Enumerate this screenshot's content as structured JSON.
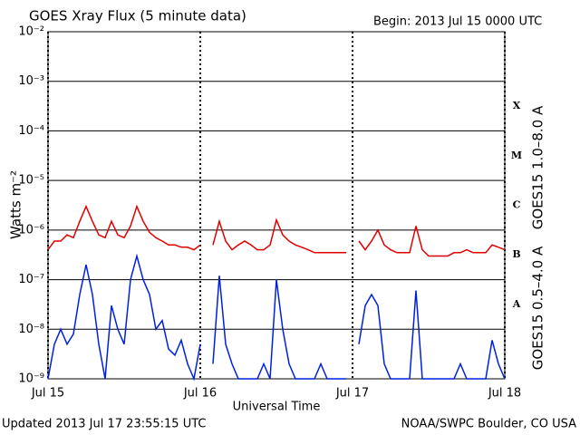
{
  "chart_data": {
    "type": "line",
    "title": "GOES Xray Flux (5 minute data)",
    "subtitle": "Begin:  2013 Jul 15 0000 UTC",
    "y_label": "Watts m⁻²",
    "x_label": "Universal Time",
    "footer_left": "Updated 2013 Jul 17 23:55:15 UTC",
    "footer_right": "NOAA/SWPC Boulder, CO USA",
    "class_labels": [
      "A",
      "B",
      "C",
      "M",
      "X"
    ],
    "log_y": true,
    "grid": true,
    "xlim": [
      0,
      72
    ],
    "xticks": [
      {
        "value": 0,
        "label": "Jul 15"
      },
      {
        "value": 24,
        "label": "Jul 16"
      },
      {
        "value": 48,
        "label": "Jul 17"
      },
      {
        "value": 72,
        "label": "Jul 18"
      }
    ],
    "ylim": [
      1e-09,
      0.01
    ],
    "yticks": [
      {
        "value": 1e-09,
        "label": "10⁻⁹"
      },
      {
        "value": 1e-08,
        "label": "10⁻⁸"
      },
      {
        "value": 1e-07,
        "label": "10⁻⁷"
      },
      {
        "value": 1e-06,
        "label": "10⁻⁶"
      },
      {
        "value": 1e-05,
        "label": "10⁻⁵"
      },
      {
        "value": 0.0001,
        "label": "10⁻⁴"
      },
      {
        "value": 0.001,
        "label": "10⁻³"
      },
      {
        "value": 0.01,
        "label": "10⁻²"
      }
    ],
    "x": [
      0,
      1,
      2,
      3,
      4,
      5,
      6,
      7,
      8,
      9,
      10,
      11,
      12,
      13,
      14,
      15,
      16,
      17,
      18,
      19,
      20,
      21,
      22,
      23,
      24,
      25,
      26,
      27,
      28,
      29,
      30,
      31,
      32,
      33,
      34,
      35,
      36,
      37,
      38,
      39,
      40,
      41,
      42,
      43,
      44,
      45,
      46,
      47,
      48,
      49,
      50,
      51,
      52,
      53,
      54,
      55,
      56,
      57,
      58,
      59,
      60,
      61,
      62,
      63,
      64,
      65,
      66,
      67,
      68,
      69,
      70,
      71,
      72
    ],
    "series": [
      {
        "name": "GOES15 1.0–8.0 A",
        "color": "#e00000",
        "values": [
          4e-07,
          6e-07,
          6e-07,
          8e-07,
          7e-07,
          1.5e-06,
          3e-06,
          1.5e-06,
          8e-07,
          7e-07,
          1.5e-06,
          8e-07,
          7e-07,
          1.2e-06,
          3e-06,
          1.5e-06,
          9e-07,
          7e-07,
          6e-07,
          5e-07,
          5e-07,
          4.5e-07,
          4.5e-07,
          4e-07,
          5e-07,
          null,
          5e-07,
          1.5e-06,
          6e-07,
          4e-07,
          5e-07,
          6e-07,
          5e-07,
          4e-07,
          4e-07,
          5e-07,
          1.6e-06,
          8e-07,
          6e-07,
          5e-07,
          4.5e-07,
          4e-07,
          3.5e-07,
          3.5e-07,
          3.5e-07,
          3.5e-07,
          3.5e-07,
          3.5e-07,
          null,
          6e-07,
          4e-07,
          6e-07,
          1e-06,
          5e-07,
          4e-07,
          3.5e-07,
          3.5e-07,
          3.5e-07,
          1.2e-06,
          4e-07,
          3e-07,
          3e-07,
          3e-07,
          3e-07,
          3.5e-07,
          3.5e-07,
          4e-07,
          3.5e-07,
          3.5e-07,
          3.5e-07,
          5e-07,
          4.5e-07,
          4e-07
        ]
      },
      {
        "name": "GOES15 0.5–4.0 A",
        "color": "#0020e0",
        "values": [
          1e-09,
          5e-09,
          1e-08,
          5e-09,
          8e-09,
          5e-08,
          2e-07,
          5e-08,
          5e-09,
          1e-09,
          3e-08,
          1e-08,
          5e-09,
          1e-07,
          3e-07,
          1e-07,
          5e-08,
          1e-08,
          1.5e-08,
          4e-09,
          3e-09,
          6e-09,
          2e-09,
          1e-09,
          5e-09,
          null,
          2e-09,
          1.2e-07,
          5e-09,
          2e-09,
          1e-09,
          1e-09,
          1e-09,
          1e-09,
          2e-09,
          1e-09,
          1e-07,
          1e-08,
          2e-09,
          1e-09,
          1e-09,
          1e-09,
          1e-09,
          2e-09,
          1e-09,
          1e-09,
          1e-09,
          1e-09,
          null,
          5e-09,
          3e-08,
          5e-08,
          3e-08,
          2e-09,
          1e-09,
          1e-09,
          1e-09,
          1e-09,
          6e-08,
          1e-09,
          1e-09,
          1e-09,
          1e-09,
          1e-09,
          1e-09,
          2e-09,
          1e-09,
          1e-09,
          1e-09,
          1e-09,
          6e-09,
          2e-09,
          1e-09
        ]
      }
    ]
  }
}
